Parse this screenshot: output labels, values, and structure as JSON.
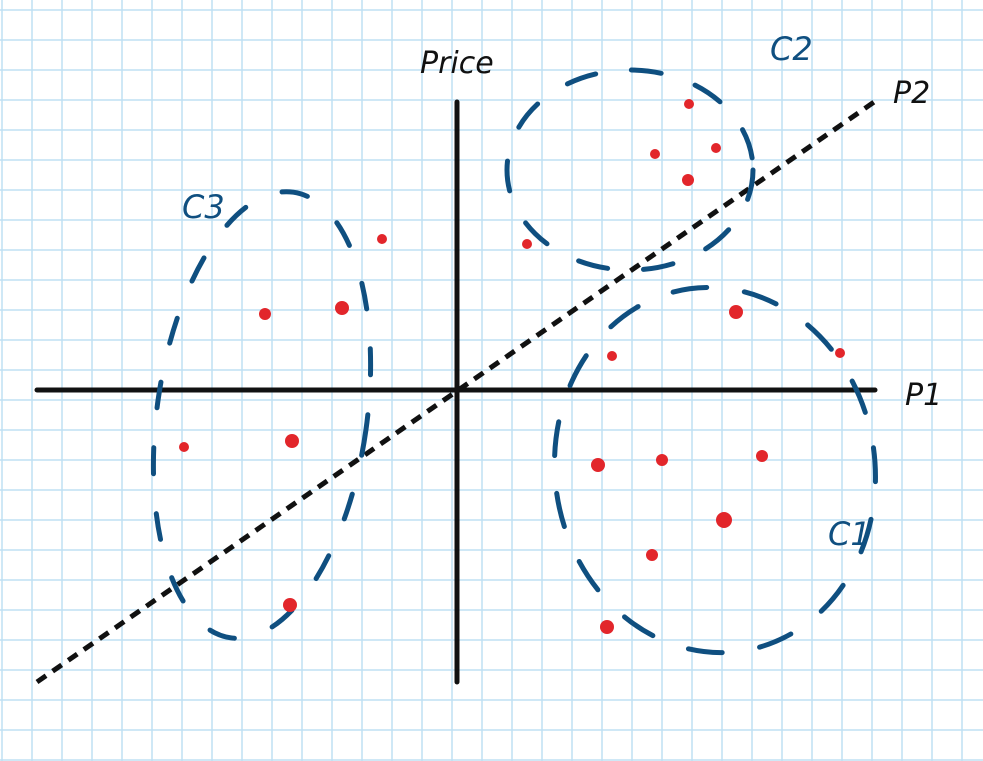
{
  "labels": {
    "y_axis": "Price",
    "x_axis": "P1",
    "diagonal": "P2",
    "cluster1": "C1",
    "cluster2": "C2",
    "cluster3": "C3"
  },
  "colors": {
    "grid": "#bfe0f4",
    "axis": "#111111",
    "cluster_outline": "#0f4f80",
    "point": "#e2262b"
  }
}
